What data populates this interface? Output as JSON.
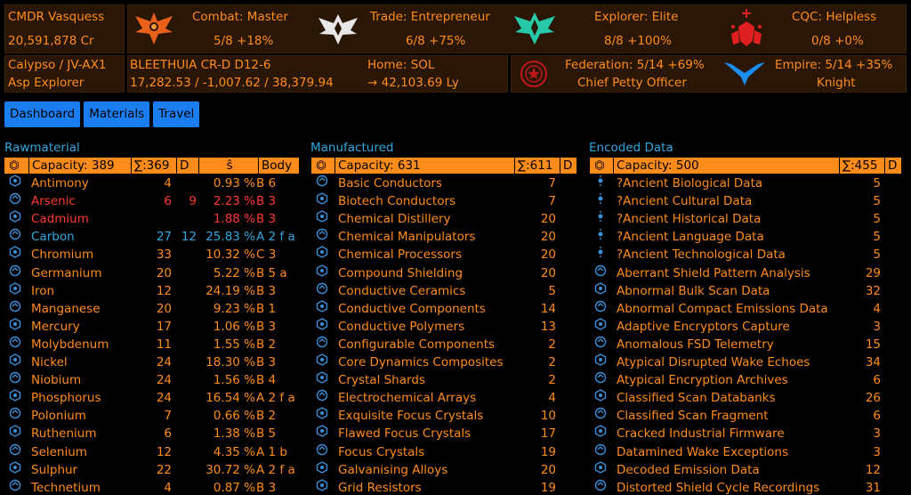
{
  "colors": {
    "accent": "#ff8c1a",
    "blue": "#33a7e0",
    "red": "#ff3b2f",
    "panel": "#2a1605"
  },
  "header": {
    "cmdr": "CMDR Vasquess",
    "credits": "20,591,878 Cr",
    "location": "Calypso / JV-AX1",
    "ship": "Asp Explorer",
    "system": "BLEETHUIA CR-D D12-6",
    "coords": "17,282.53 / -1,007.62 / 38,379.94",
    "home": "Home: SOL",
    "home_dist": "→ 42,103.69 Ly",
    "combat": {
      "title": "Combat: Master",
      "progress": "5/8 +18%"
    },
    "trade": {
      "title": "Trade: Entrepreneur",
      "progress": "6/8 +75%"
    },
    "explorer": {
      "title": "Explorer: Elite",
      "progress": "8/8 +100%"
    },
    "cqc": {
      "title": "CQC: Helpless",
      "progress": "0/8 +0%"
    },
    "federation": {
      "title": "Federation: 5/14 +69%",
      "rank": "Chief Petty Officer"
    },
    "empire": {
      "title": "Empire: 5/14 +35%",
      "rank": "Knight"
    }
  },
  "tabs": [
    "Dashboard",
    "Materials",
    "Travel"
  ],
  "raw": {
    "title": "Rawmaterial",
    "capacity": "Capacity: 389",
    "sum": "∑:369",
    "d": "D",
    "pct": "ŝ",
    "body": "Body",
    "items": [
      {
        "name": "Antimony",
        "n": "4",
        "d": "",
        "pct": "0.93 %",
        "body": "B 6",
        "c": "o"
      },
      {
        "name": "Arsenic",
        "n": "6",
        "d": "9",
        "pct": "2.23 %",
        "body": "B 3",
        "c": "r"
      },
      {
        "name": "Cadmium",
        "n": "",
        "d": "",
        "pct": "1.88 %",
        "body": "B 3",
        "c": "r"
      },
      {
        "name": "Carbon",
        "n": "27",
        "d": "12",
        "pct": "25.83 %",
        "body": "A 2 f a",
        "c": "b"
      },
      {
        "name": "Chromium",
        "n": "33",
        "d": "",
        "pct": "10.32 %",
        "body": "C 3",
        "c": "o"
      },
      {
        "name": "Germanium",
        "n": "20",
        "d": "",
        "pct": "5.22 %",
        "body": "B 5 a",
        "c": "o"
      },
      {
        "name": "Iron",
        "n": "12",
        "d": "",
        "pct": "24.19 %",
        "body": "B 3",
        "c": "o"
      },
      {
        "name": "Manganese",
        "n": "20",
        "d": "",
        "pct": "9.23 %",
        "body": "B 1",
        "c": "o"
      },
      {
        "name": "Mercury",
        "n": "17",
        "d": "",
        "pct": "1.06 %",
        "body": "B 3",
        "c": "o"
      },
      {
        "name": "Molybdenum",
        "n": "11",
        "d": "",
        "pct": "1.55 %",
        "body": "B 2",
        "c": "o"
      },
      {
        "name": "Nickel",
        "n": "24",
        "d": "",
        "pct": "18.30 %",
        "body": "B 3",
        "c": "o"
      },
      {
        "name": "Niobium",
        "n": "24",
        "d": "",
        "pct": "1.56 %",
        "body": "B 4",
        "c": "o"
      },
      {
        "name": "Phosphorus",
        "n": "24",
        "d": "",
        "pct": "16.54 %",
        "body": "A 2 f a",
        "c": "o"
      },
      {
        "name": "Polonium",
        "n": "7",
        "d": "",
        "pct": "0.66 %",
        "body": "B 2",
        "c": "o"
      },
      {
        "name": "Ruthenium",
        "n": "6",
        "d": "",
        "pct": "1.38 %",
        "body": "B 5",
        "c": "o"
      },
      {
        "name": "Selenium",
        "n": "12",
        "d": "",
        "pct": "4.35 %",
        "body": "A 1 b",
        "c": "o"
      },
      {
        "name": "Sulphur",
        "n": "22",
        "d": "",
        "pct": "30.72 %",
        "body": "A 2 f a",
        "c": "o"
      },
      {
        "name": "Technetium",
        "n": "4",
        "d": "",
        "pct": "0.87 %",
        "body": "B 3",
        "c": "o"
      }
    ]
  },
  "man": {
    "title": "Manufactured",
    "capacity": "Capacity: 631",
    "sum": "∑:611",
    "d": "D",
    "items": [
      {
        "name": "Basic Conductors",
        "n": "7"
      },
      {
        "name": "Biotech Conductors",
        "n": "7"
      },
      {
        "name": "Chemical Distillery",
        "n": "20"
      },
      {
        "name": "Chemical Manipulators",
        "n": "20"
      },
      {
        "name": "Chemical Processors",
        "n": "20"
      },
      {
        "name": "Compound Shielding",
        "n": "20"
      },
      {
        "name": "Conductive Ceramics",
        "n": "5"
      },
      {
        "name": "Conductive Components",
        "n": "14"
      },
      {
        "name": "Conductive Polymers",
        "n": "13"
      },
      {
        "name": "Configurable Components",
        "n": "2"
      },
      {
        "name": "Core Dynamics Composites",
        "n": "2"
      },
      {
        "name": "Crystal Shards",
        "n": "2"
      },
      {
        "name": "Electrochemical Arrays",
        "n": "4"
      },
      {
        "name": "Exquisite Focus Crystals",
        "n": "10"
      },
      {
        "name": "Flawed Focus Crystals",
        "n": "17"
      },
      {
        "name": "Focus Crystals",
        "n": "19"
      },
      {
        "name": "Galvanising Alloys",
        "n": "20"
      },
      {
        "name": "Grid Resistors",
        "n": "19"
      }
    ]
  },
  "enc": {
    "title": "Encoded Data",
    "capacity": "Capacity: 500",
    "sum": "∑:455",
    "d": "D",
    "items": [
      {
        "name": "?Ancient Biological Data",
        "n": "5"
      },
      {
        "name": "?Ancient Cultural Data",
        "n": "5"
      },
      {
        "name": "?Ancient Historical Data",
        "n": "5"
      },
      {
        "name": "?Ancient Language Data",
        "n": "5"
      },
      {
        "name": "?Ancient Technological Data",
        "n": "5"
      },
      {
        "name": "Aberrant Shield Pattern Analysis",
        "n": "29"
      },
      {
        "name": "Abnormal Bulk Scan Data",
        "n": "32"
      },
      {
        "name": "Abnormal Compact Emissions Data",
        "n": "4"
      },
      {
        "name": "Adaptive Encryptors Capture",
        "n": "3"
      },
      {
        "name": "Anomalous FSD Telemetry",
        "n": "15"
      },
      {
        "name": "Atypical Disrupted Wake Echoes",
        "n": "34"
      },
      {
        "name": "Atypical Encryption Archives",
        "n": "6"
      },
      {
        "name": "Classified Scan Databanks",
        "n": "26"
      },
      {
        "name": "Classified Scan Fragment",
        "n": "6"
      },
      {
        "name": "Cracked Industrial Firmware",
        "n": "3"
      },
      {
        "name": "Datamined Wake Exceptions",
        "n": "3"
      },
      {
        "name": "Decoded Emission Data",
        "n": "12"
      },
      {
        "name": "Distorted Shield Cycle Recordings",
        "n": "31"
      }
    ]
  }
}
